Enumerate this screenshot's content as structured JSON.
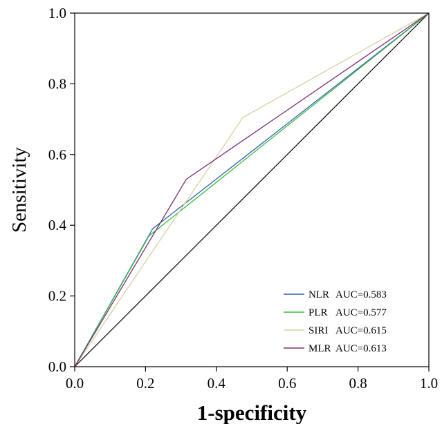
{
  "chart_data": {
    "type": "line",
    "xlabel": "1-specificity",
    "ylabel": "Sensitivity",
    "xlim": [
      0,
      1
    ],
    "ylim": [
      0,
      1
    ],
    "x_ticks": [
      "0.0",
      "0.2",
      "0.4",
      "0.6",
      "0.8",
      "1.0"
    ],
    "y_ticks": [
      "0.0",
      "0.2",
      "0.4",
      "0.6",
      "0.8",
      "1.0"
    ],
    "grid": false,
    "legend_position": "bottom-right",
    "reference_line": {
      "x": [
        0,
        1
      ],
      "y": [
        0,
        1
      ],
      "color": "#000000"
    },
    "series": [
      {
        "name": "NLR",
        "auc_label": "AUC=0.583",
        "color": "#3b5bb5",
        "x": [
          0,
          0.22,
          1
        ],
        "y": [
          0,
          0.39,
          1
        ]
      },
      {
        "name": "PLR",
        "auc_label": "AUC=0.577",
        "color": "#2ebf3a",
        "x": [
          0,
          0.21,
          1
        ],
        "y": [
          0,
          0.37,
          1
        ]
      },
      {
        "name": "SIRI",
        "auc_label": "AUC=0.615",
        "color": "#d6d0a4",
        "x": [
          0,
          0.475,
          1
        ],
        "y": [
          0,
          0.705,
          1
        ]
      },
      {
        "name": "MLR",
        "auc_label": "AUC=0.613",
        "color": "#7a2a7a",
        "x": [
          0,
          0.315,
          1
        ],
        "y": [
          0,
          0.53,
          1
        ]
      }
    ]
  }
}
